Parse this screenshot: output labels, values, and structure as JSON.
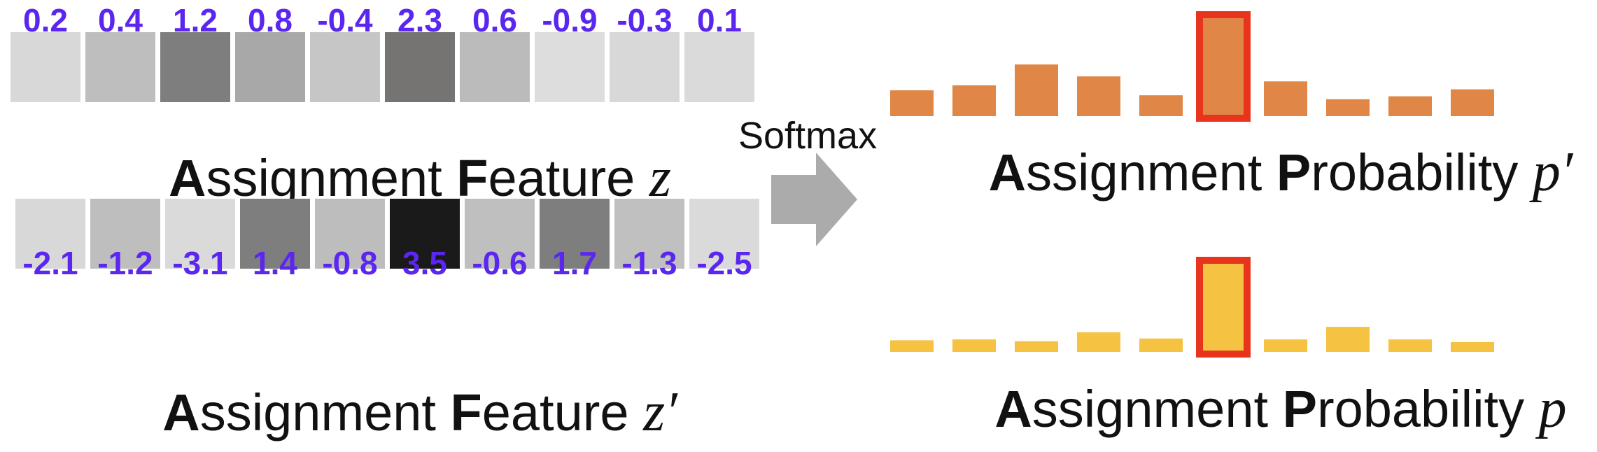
{
  "colors": {
    "value_text": "#5a26f0",
    "prob_top": "#e08646",
    "prob_bottom": "#f5c242",
    "highlight": "#e8341c",
    "arrow": "#ababab"
  },
  "feature_top": {
    "values": [
      "0.2",
      "0.4",
      "1.2",
      "0.8",
      "-0.4",
      "2.3",
      "0.6",
      "-0.9",
      "-0.3",
      "0.1"
    ],
    "cell_shades": [
      "#d8d8d8",
      "#bebebe",
      "#7e7e7e",
      "#a8a8a8",
      "#c6c6c6",
      "#767373",
      "#bbbbbb",
      "#dddddd",
      "#d8d8d8",
      "#dadada"
    ],
    "caption": {
      "A": "A",
      "ssignment": "ssignment ",
      "F": "F",
      "eature": "eature ",
      "math": "z"
    }
  },
  "feature_bottom": {
    "values": [
      "-2.1",
      "-1.2",
      "-3.1",
      "1.4",
      "-0.8",
      "3.5",
      "-0.6",
      "1.7",
      "-1.3",
      "-2.5"
    ],
    "cell_shades": [
      "#d8d8d8",
      "#bebebe",
      "#dadada",
      "#7e7e7e",
      "#bdbdbd",
      "#1a1a1a",
      "#bfbfbf",
      "#7e7e7e",
      "#c0c0c0",
      "#dadada"
    ],
    "caption": {
      "A": "A",
      "ssignment": "ssignment ",
      "F": "F",
      "eature": "eature ",
      "math": "z′"
    }
  },
  "softmax": {
    "label": "Softmax",
    "icon": "right-arrow-icon"
  },
  "prob_top": {
    "heights": [
      0.26,
      0.31,
      0.52,
      0.4,
      0.21,
      1.0,
      0.35,
      0.17,
      0.2,
      0.27
    ],
    "highlight_index": 5,
    "caption": {
      "A": "A",
      "ssignment": "ssignment ",
      "P": "P",
      "robability": "robability ",
      "math": "p′"
    }
  },
  "prob_bottom": {
    "heights": [
      0.13,
      0.14,
      0.12,
      0.22,
      0.15,
      1.0,
      0.14,
      0.28,
      0.14,
      0.11
    ],
    "highlight_index": 5,
    "caption": {
      "A": "A",
      "ssignment": "ssignment ",
      "P": "P",
      "robability": "robability ",
      "math": "p"
    }
  }
}
